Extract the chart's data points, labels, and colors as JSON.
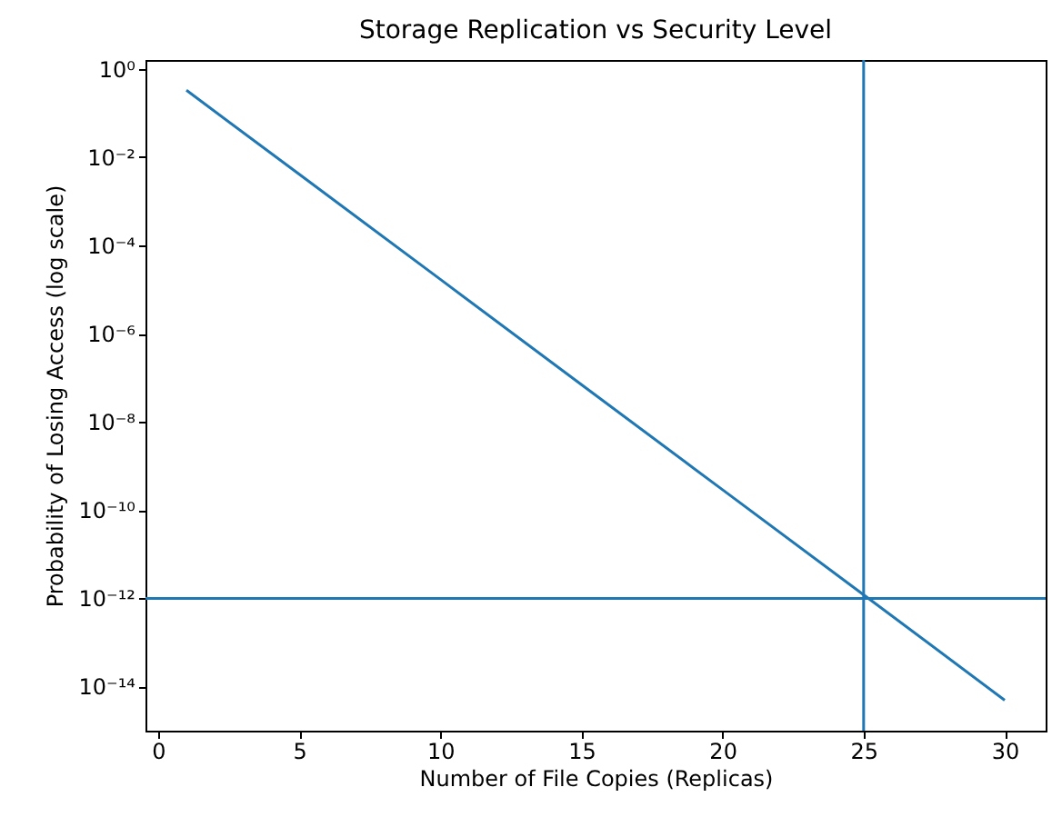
{
  "chart_data": {
    "type": "line",
    "title": "Storage Replication vs Security Level",
    "xlabel": "Number of File Copies (Replicas)",
    "ylabel": "Probability of Losing Access (log scale)",
    "x": [
      1,
      5,
      10,
      15,
      20,
      25,
      30
    ],
    "series": [
      {
        "color": "#1f77b4",
        "values": [
          0.33,
          0.0041,
          1.7e-05,
          7e-08,
          2.9e-10,
          1.2e-12,
          4.9e-15
        ]
      }
    ],
    "log": "y",
    "grid": false,
    "marker": "none",
    "line_style": "solid",
    "xlim": [
      -0.45,
      31.45
    ],
    "xticks": [
      0,
      5,
      10,
      15,
      20,
      25,
      30
    ],
    "ylim": [
      1e-15,
      1.6
    ],
    "yticks": [
      {
        "value": 1,
        "label": "10⁰"
      },
      {
        "value": 0.01,
        "label": "10⁻²"
      },
      {
        "value": 0.0001,
        "label": "10⁻⁴"
      },
      {
        "value": 1e-06,
        "label": "10⁻⁶"
      },
      {
        "value": 1e-08,
        "label": "10⁻⁸"
      },
      {
        "value": 1e-10,
        "label": "10⁻¹⁰"
      },
      {
        "value": 1e-12,
        "label": "10⁻¹²"
      },
      {
        "value": 1e-14,
        "label": "10⁻¹⁴"
      }
    ],
    "ref_lines": [
      {
        "axis": "y",
        "value": 1e-12,
        "color": "#1f77b4"
      },
      {
        "axis": "x",
        "value": 25,
        "color": "#1f77b4"
      }
    ]
  }
}
